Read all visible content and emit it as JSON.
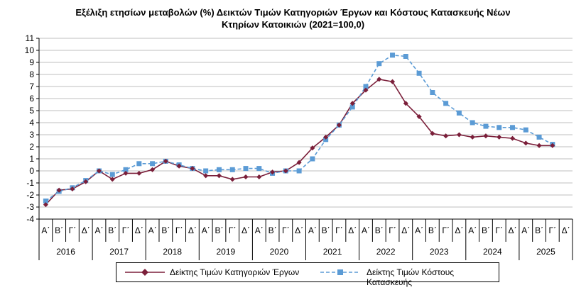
{
  "chart_data": {
    "type": "line",
    "title": "Εξέλιξη ετησίων μεταβολών (%) Δεικτών Τιμών Κατηγοριών Έργων και Κόστους Κατασκευής Νέων",
    "subtitle": "Κτηρίων Κατοικιών (2021=100,0)",
    "ylim": [
      -4,
      11
    ],
    "yticks": [
      "11",
      "10",
      "9",
      "8",
      "7",
      "6",
      "5",
      "4",
      "3",
      "2",
      "1",
      "0",
      "-1",
      "-2",
      "-3",
      "-4"
    ],
    "quarter_labels": [
      "Α΄",
      "Β΄",
      "Γ΄",
      "Δ΄"
    ],
    "years": [
      "2016",
      "2017",
      "2018",
      "2019",
      "2020",
      "2021",
      "2022",
      "2023",
      "2024",
      "2025"
    ],
    "grid": "horizontal",
    "legend_position": "bottom",
    "series": [
      {
        "name": "Δείκτης Τιμών Κατηγοριών Έργων",
        "color": "#7B1F3A",
        "marker": "diamond",
        "values": [
          -2.8,
          -1.6,
          -1.5,
          -0.9,
          0.0,
          -0.7,
          -0.2,
          -0.2,
          0.1,
          0.8,
          0.4,
          0.2,
          -0.4,
          -0.4,
          -0.7,
          -0.5,
          -0.5,
          -0.1,
          0.0,
          0.7,
          1.9,
          2.8,
          3.8,
          5.6,
          6.7,
          7.6,
          7.4,
          5.6,
          4.5,
          3.1,
          2.9,
          3.0,
          2.8,
          2.9,
          2.8,
          2.7,
          2.3,
          2.1,
          2.1
        ]
      },
      {
        "name": "Δείκτης Τιμών Κόστους Κατασκευής",
        "color": "#5B9BD5",
        "marker": "square",
        "values": [
          -2.5,
          -1.7,
          -1.4,
          -0.8,
          0.0,
          -0.3,
          0.1,
          0.6,
          0.6,
          0.8,
          0.5,
          0.2,
          0.0,
          0.1,
          0.1,
          0.2,
          0.2,
          -0.2,
          0.0,
          0.0,
          1.0,
          2.6,
          3.8,
          5.3,
          7.0,
          8.9,
          9.6,
          9.5,
          8.1,
          6.5,
          5.6,
          4.8,
          4.0,
          3.7,
          3.6,
          3.6,
          3.4,
          2.8,
          2.2
        ]
      }
    ]
  },
  "legend": {
    "series1_label": "Δείκτης Τιμών Κατηγοριών Έργων",
    "series2_label": "Δείκτης Τιμών Κόστους Κατασκευής"
  }
}
